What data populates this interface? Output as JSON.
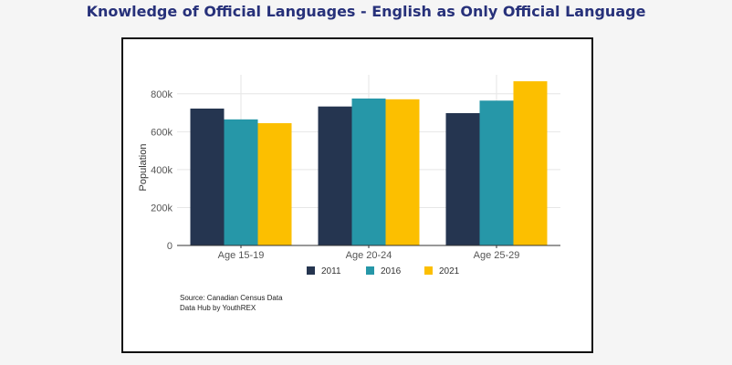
{
  "page": {
    "title": "Knowledge of Official Languages - English as Only Official Language",
    "title_color": "#27317a"
  },
  "chart_data": {
    "type": "bar",
    "title": "",
    "categories": [
      "Age 15-19",
      "Age 20-24",
      "Age 25-29"
    ],
    "series": [
      {
        "name": "2011",
        "color": "#253550",
        "values": [
          722000,
          733000,
          698000
        ]
      },
      {
        "name": "2016",
        "color": "#2697a8",
        "values": [
          665000,
          775000,
          764000
        ]
      },
      {
        "name": "2021",
        "color": "#fcbf00",
        "values": [
          645000,
          771000,
          866000
        ]
      }
    ],
    "xlabel": "",
    "ylabel": "Population",
    "ylim": [
      0,
      900000
    ],
    "yticks": [
      0,
      200000,
      400000,
      600000,
      800000
    ],
    "ytick_labels": [
      "0",
      "200k",
      "400k",
      "600k",
      "800k"
    ],
    "grid": true,
    "legend_position": "bottom"
  },
  "notes": {
    "source": "Source: Canadian Census Data",
    "credit": "Data Hub by YouthREX"
  }
}
